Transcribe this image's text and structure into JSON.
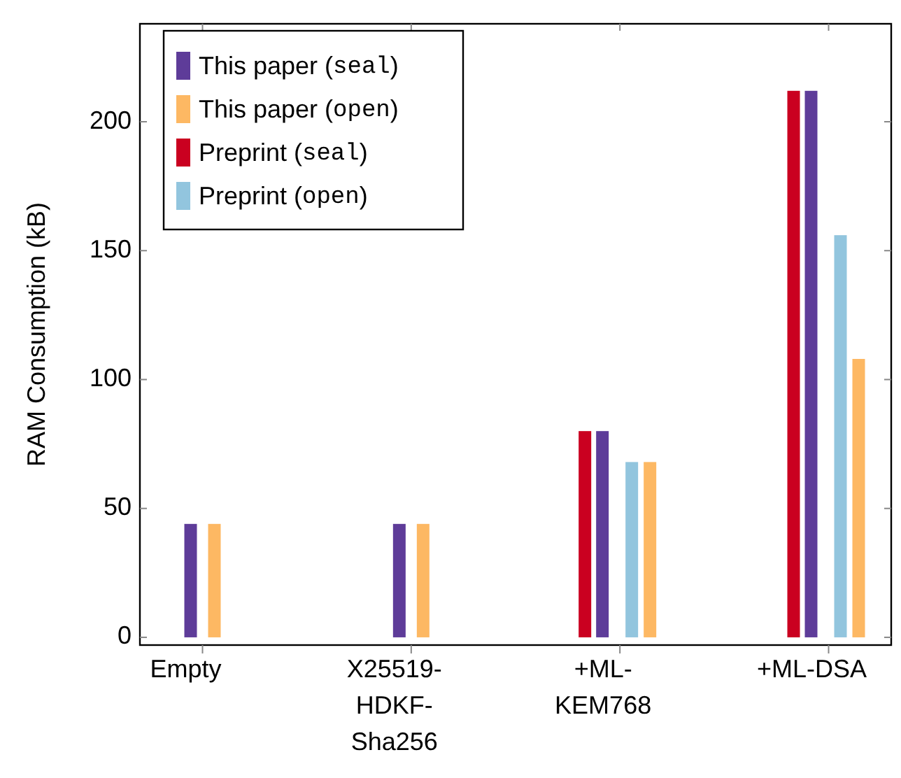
{
  "chart_data": {
    "type": "bar",
    "ylabel": "RAM Consumption (kB)",
    "categories": [
      "Empty",
      "X25519-HDKF-Sha256",
      "+ML-KEM768",
      "+ML-DSA"
    ],
    "series": [
      {
        "name": "This paper (seal)",
        "color": "#5e3c99",
        "values": [
          44,
          44,
          80,
          212
        ]
      },
      {
        "name": "This paper (open)",
        "color": "#fdb863",
        "values": [
          44,
          44,
          68,
          108
        ]
      },
      {
        "name": "Preprint (seal)",
        "color": "#ca0020",
        "values": [
          null,
          null,
          80,
          212
        ]
      },
      {
        "name": "Preprint (open)",
        "color": "#92c5de",
        "values": [
          null,
          null,
          68,
          156
        ]
      }
    ],
    "ylim": [
      -3,
      238
    ],
    "yticks": [
      0,
      50,
      100,
      150,
      200
    ],
    "legend": "top left",
    "grid": false
  }
}
